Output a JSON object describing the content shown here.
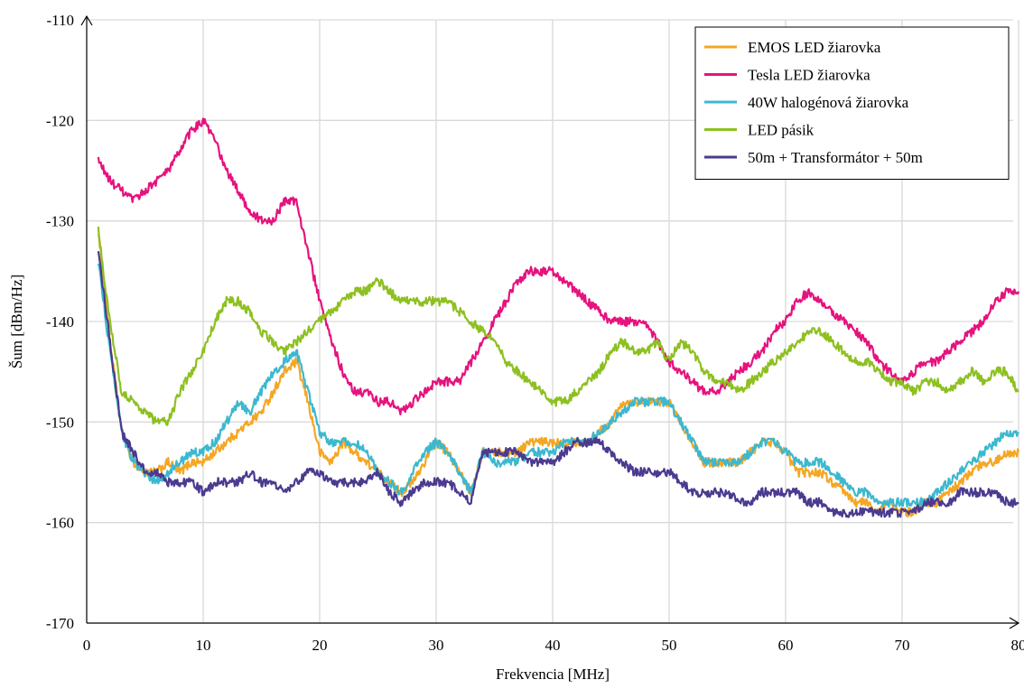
{
  "chart_data": {
    "type": "line",
    "title": "",
    "xlabel": "Frekvencia [MHz]",
    "ylabel": "Šum [dBm/Hz]",
    "xlim": [
      0,
      80
    ],
    "ylim": [
      -170,
      -110
    ],
    "xticks": [
      0,
      10,
      20,
      30,
      40,
      50,
      60,
      70,
      80
    ],
    "yticks": [
      -170,
      -160,
      -150,
      -140,
      -130,
      -120,
      -110
    ],
    "xtick_labels": [
      "0",
      "10",
      "20",
      "30",
      "40",
      "50",
      "60",
      "70",
      "80"
    ],
    "ytick_labels": [
      "-170",
      "-160",
      "-150",
      "-140",
      "-130",
      "-120",
      "-110"
    ],
    "grid": true,
    "legend_position": "top-right",
    "noise": true,
    "series": [
      {
        "name": "EMOS LED žiarovka",
        "color": "#f5a623",
        "x": [
          1,
          2,
          3,
          4,
          5,
          6,
          7,
          8,
          9,
          10,
          11,
          12,
          13,
          14,
          15,
          16,
          17,
          18,
          19,
          20,
          21,
          22,
          23,
          24,
          25,
          26,
          27,
          28,
          29,
          30,
          31,
          32,
          33,
          34,
          35,
          36,
          37,
          38,
          39,
          40,
          41,
          42,
          43,
          44,
          45,
          46,
          47,
          48,
          49,
          50,
          51,
          52,
          53,
          54,
          55,
          56,
          57,
          58,
          59,
          60,
          61,
          62,
          63,
          64,
          65,
          66,
          67,
          68,
          69,
          70,
          71,
          72,
          73,
          74,
          75,
          76,
          77,
          78,
          79,
          80
        ],
        "y": [
          -131,
          -142,
          -151,
          -154,
          -155,
          -155,
          -154,
          -155,
          -154,
          -154,
          -153,
          -152,
          -151,
          -150,
          -149,
          -147,
          -145,
          -144,
          -148,
          -153,
          -154,
          -152,
          -153,
          -154,
          -155,
          -156,
          -157,
          -156,
          -154,
          -152,
          -153,
          -155,
          -157,
          -153,
          -153,
          -153,
          -153,
          -152,
          -152,
          -152,
          -152,
          -152,
          -152,
          -151,
          -150,
          -148,
          -148,
          -148,
          -148,
          -148,
          -150,
          -152,
          -154,
          -154,
          -154,
          -154,
          -153,
          -152,
          -152,
          -153,
          -155,
          -155,
          -155,
          -156,
          -157,
          -158,
          -158,
          -159,
          -158,
          -159,
          -159,
          -158,
          -158,
          -157,
          -156,
          -155,
          -154,
          -154,
          -153,
          -153
        ]
      },
      {
        "name": "Tesla LED žiarovka",
        "color": "#e6127d",
        "x": [
          1,
          2,
          3,
          4,
          5,
          6,
          7,
          8,
          9,
          10,
          11,
          12,
          13,
          14,
          15,
          16,
          17,
          18,
          19,
          20,
          21,
          22,
          23,
          24,
          25,
          26,
          27,
          28,
          29,
          30,
          31,
          32,
          33,
          34,
          35,
          36,
          37,
          38,
          39,
          40,
          41,
          42,
          43,
          44,
          45,
          46,
          47,
          48,
          49,
          50,
          51,
          52,
          53,
          54,
          55,
          56,
          57,
          58,
          59,
          60,
          61,
          62,
          63,
          64,
          65,
          66,
          67,
          68,
          69,
          70,
          71,
          72,
          73,
          74,
          75,
          76,
          77,
          78,
          79,
          80
        ],
        "y": [
          -124,
          -126,
          -127,
          -128,
          -127,
          -126,
          -125,
          -123,
          -121,
          -120,
          -122,
          -125,
          -127,
          -129,
          -130,
          -130,
          -128,
          -128,
          -133,
          -138,
          -142,
          -145,
          -147,
          -147,
          -148,
          -148,
          -149,
          -148,
          -147,
          -146,
          -146,
          -146,
          -144,
          -142,
          -140,
          -138,
          -136,
          -135,
          -135,
          -135,
          -136,
          -137,
          -138,
          -139,
          -140,
          -140,
          -140,
          -140,
          -142,
          -144,
          -145,
          -146,
          -147,
          -147,
          -146,
          -145,
          -144,
          -143,
          -141,
          -140,
          -138,
          -137,
          -138,
          -139,
          -140,
          -141,
          -142,
          -144,
          -145,
          -146,
          -145,
          -144,
          -144,
          -143,
          -142,
          -141,
          -140,
          -138,
          -137,
          -137
        ]
      },
      {
        "name": "40W halogénová žiarovka",
        "color": "#3cb8cf",
        "x": [
          1,
          2,
          3,
          4,
          5,
          6,
          7,
          8,
          9,
          10,
          11,
          12,
          13,
          14,
          15,
          16,
          17,
          18,
          19,
          20,
          21,
          22,
          23,
          24,
          25,
          26,
          27,
          28,
          29,
          30,
          31,
          32,
          33,
          34,
          35,
          36,
          37,
          38,
          39,
          40,
          41,
          42,
          43,
          44,
          45,
          46,
          47,
          48,
          49,
          50,
          51,
          52,
          53,
          54,
          55,
          56,
          57,
          58,
          59,
          60,
          61,
          62,
          63,
          64,
          65,
          66,
          67,
          68,
          69,
          70,
          71,
          72,
          73,
          74,
          75,
          76,
          77,
          78,
          79,
          80
        ],
        "y": [
          -134,
          -143,
          -151,
          -154,
          -155,
          -156,
          -155,
          -154,
          -153,
          -153,
          -152,
          -150,
          -148,
          -149,
          -147,
          -145,
          -144,
          -143,
          -147,
          -151,
          -152,
          -152,
          -152,
          -153,
          -155,
          -156,
          -157,
          -155,
          -153,
          -152,
          -153,
          -155,
          -157,
          -153,
          -154,
          -154,
          -154,
          -153,
          -153,
          -153,
          -152,
          -152,
          -152,
          -151,
          -150,
          -149,
          -148,
          -148,
          -148,
          -148,
          -150,
          -152,
          -154,
          -154,
          -154,
          -154,
          -153,
          -152,
          -152,
          -153,
          -154,
          -154,
          -154,
          -155,
          -156,
          -157,
          -157,
          -158,
          -158,
          -158,
          -158,
          -158,
          -157,
          -156,
          -155,
          -154,
          -153,
          -152,
          -151,
          -151
        ]
      },
      {
        "name": "LED pásik",
        "color": "#8dc021",
        "x": [
          1,
          2,
          3,
          4,
          5,
          6,
          7,
          8,
          9,
          10,
          11,
          12,
          13,
          14,
          15,
          16,
          17,
          18,
          19,
          20,
          21,
          22,
          23,
          24,
          25,
          26,
          27,
          28,
          29,
          30,
          31,
          32,
          33,
          34,
          35,
          36,
          37,
          38,
          39,
          40,
          41,
          42,
          43,
          44,
          45,
          46,
          47,
          48,
          49,
          50,
          51,
          52,
          53,
          54,
          55,
          56,
          57,
          58,
          59,
          60,
          61,
          62,
          63,
          64,
          65,
          66,
          67,
          68,
          69,
          70,
          71,
          72,
          73,
          74,
          75,
          76,
          77,
          78,
          79,
          80
        ],
        "y": [
          -131,
          -140,
          -147,
          -148,
          -149,
          -150,
          -150,
          -147,
          -145,
          -143,
          -140,
          -138,
          -138,
          -139,
          -141,
          -142,
          -143,
          -142,
          -141,
          -140,
          -139,
          -138,
          -137,
          -137,
          -136,
          -137,
          -138,
          -138,
          -138,
          -138,
          -138,
          -139,
          -140,
          -141,
          -142,
          -144,
          -145,
          -146,
          -147,
          -148,
          -148,
          -147,
          -146,
          -145,
          -143,
          -142,
          -143,
          -143,
          -142,
          -144,
          -142,
          -143,
          -145,
          -146,
          -146,
          -147,
          -146,
          -145,
          -144,
          -143,
          -142,
          -141,
          -141,
          -142,
          -143,
          -144,
          -144,
          -145,
          -146,
          -146,
          -147,
          -146,
          -146,
          -147,
          -146,
          -145,
          -146,
          -145,
          -145,
          -147
        ]
      },
      {
        "name": "50m + Transformátor + 50m",
        "color": "#4b3a8f",
        "x": [
          1,
          2,
          3,
          4,
          5,
          6,
          7,
          8,
          9,
          10,
          11,
          12,
          13,
          14,
          15,
          16,
          17,
          18,
          19,
          20,
          21,
          22,
          23,
          24,
          25,
          26,
          27,
          28,
          29,
          30,
          31,
          32,
          33,
          34,
          35,
          36,
          37,
          38,
          39,
          40,
          41,
          42,
          43,
          44,
          45,
          46,
          47,
          48,
          49,
          50,
          51,
          52,
          53,
          54,
          55,
          56,
          57,
          58,
          59,
          60,
          61,
          62,
          63,
          64,
          65,
          66,
          67,
          68,
          69,
          70,
          71,
          72,
          73,
          74,
          75,
          76,
          77,
          78,
          79,
          80
        ],
        "y": [
          -133,
          -142,
          -151,
          -153,
          -155,
          -155,
          -156,
          -156,
          -156,
          -157,
          -156,
          -156,
          -156,
          -155,
          -156,
          -156,
          -157,
          -156,
          -155,
          -155,
          -156,
          -156,
          -156,
          -156,
          -155,
          -157,
          -158,
          -157,
          -156,
          -156,
          -156,
          -157,
          -158,
          -153,
          -153,
          -153,
          -153,
          -154,
          -154,
          -154,
          -153,
          -152,
          -152,
          -152,
          -153,
          -154,
          -155,
          -155,
          -155,
          -155,
          -156,
          -157,
          -157,
          -157,
          -157,
          -158,
          -158,
          -157,
          -157,
          -157,
          -157,
          -158,
          -158,
          -159,
          -159,
          -159,
          -159,
          -159,
          -159,
          -159,
          -159,
          -158,
          -158,
          -158,
          -157,
          -157,
          -157,
          -157,
          -158,
          -158
        ]
      }
    ]
  }
}
